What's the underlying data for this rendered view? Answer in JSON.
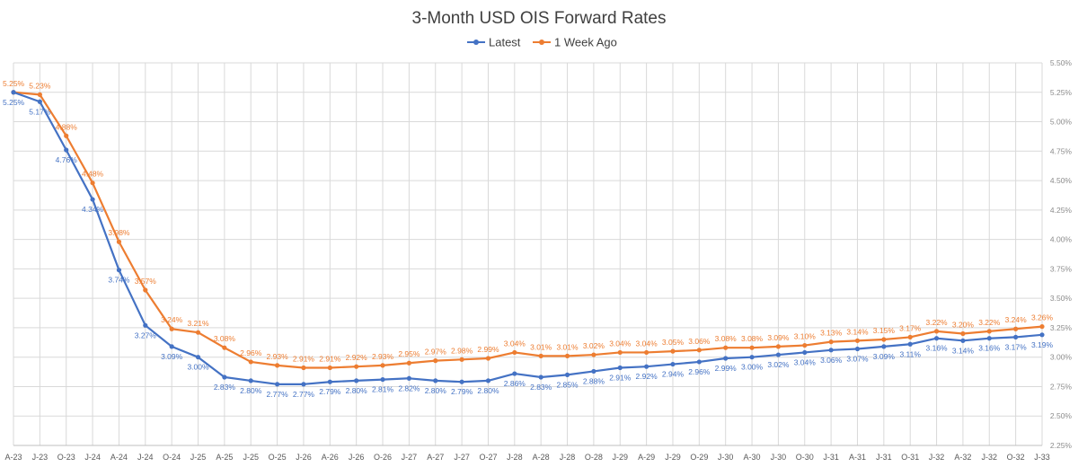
{
  "chart_data": {
    "type": "line",
    "title": "3-Month USD OIS Forward Rates",
    "categories": [
      "A-23",
      "J-23",
      "O-23",
      "J-24",
      "A-24",
      "J-24",
      "O-24",
      "J-25",
      "A-25",
      "J-25",
      "O-25",
      "J-26",
      "A-26",
      "J-26",
      "O-26",
      "J-27",
      "A-27",
      "J-27",
      "O-27",
      "J-28",
      "A-28",
      "J-28",
      "O-28",
      "J-29",
      "A-29",
      "J-29",
      "O-29",
      "J-30",
      "A-30",
      "J-30",
      "O-30",
      "J-31",
      "A-31",
      "J-31",
      "O-31",
      "J-32",
      "A-32",
      "J-32",
      "O-32",
      "J-33"
    ],
    "series": [
      {
        "name": "Latest",
        "color": "#4472c4",
        "values": [
          5.25,
          5.17,
          4.76,
          4.34,
          3.74,
          3.27,
          3.09,
          3.0,
          2.83,
          2.8,
          2.77,
          2.77,
          2.79,
          2.8,
          2.81,
          2.82,
          2.8,
          2.79,
          2.8,
          2.86,
          2.83,
          2.85,
          2.88,
          2.91,
          2.92,
          2.94,
          2.96,
          2.99,
          3.0,
          3.02,
          3.04,
          3.06,
          3.07,
          3.09,
          3.11,
          3.16,
          3.14,
          3.16,
          3.17,
          3.19
        ],
        "labels": [
          "5.25%",
          "5.17%",
          "4.76%",
          "4.34%",
          "3.74%",
          "3.27%",
          "3.09%",
          "3.00%",
          "2.83%",
          "2.80%",
          "2.77%",
          "2.77%",
          "2.79%",
          "2.80%",
          "2.81%",
          "2.82%",
          "2.80%",
          "2.79%",
          "2.80%",
          "2.86%",
          "2.83%",
          "2.85%",
          "2.88%",
          "2.91%",
          "2.92%",
          "2.94%",
          "2.96%",
          "2.99%",
          "3.00%",
          "3.02%",
          "3.04%",
          "3.06%",
          "3.07%",
          "3.09%",
          "3.11%",
          "3.16%",
          "3.14%",
          "3.16%",
          "3.17%",
          "3.19%"
        ]
      },
      {
        "name": "1 Week Ago",
        "color": "#ed7d31",
        "values": [
          5.25,
          5.23,
          4.88,
          4.48,
          3.98,
          3.57,
          3.24,
          3.21,
          3.08,
          2.96,
          2.93,
          2.91,
          2.91,
          2.92,
          2.93,
          2.95,
          2.97,
          2.98,
          2.99,
          3.04,
          3.01,
          3.01,
          3.02,
          3.04,
          3.04,
          3.05,
          3.06,
          3.08,
          3.08,
          3.09,
          3.1,
          3.13,
          3.14,
          3.15,
          3.17,
          3.22,
          3.2,
          3.22,
          3.24,
          3.26
        ],
        "labels": [
          "5.25%",
          "5.23%",
          "4.88%",
          "4.48%",
          "3.98%",
          "3.57%",
          "3.24%",
          "3.21%",
          "3.08%",
          "2.96%",
          "2.93%",
          "2.91%",
          "2.91%",
          "2.92%",
          "2.93%",
          "2.95%",
          "2.97%",
          "2.98%",
          "2.99%",
          "3.04%",
          "3.01%",
          "3.01%",
          "3.02%",
          "3.04%",
          "3.04%",
          "3.05%",
          "3.06%",
          "3.08%",
          "3.08%",
          "3.09%",
          "3.10%",
          "3.13%",
          "3.14%",
          "3.15%",
          "3.17%",
          "3.22%",
          "3.20%",
          "3.22%",
          "3.24%",
          "3.26%"
        ]
      }
    ],
    "ylim": [
      2.25,
      5.5
    ],
    "yticks": [
      "2.25%",
      "2.50%",
      "2.75%",
      "3.00%",
      "3.25%",
      "3.50%",
      "3.75%",
      "4.00%",
      "4.25%",
      "4.50%",
      "4.75%",
      "5.00%",
      "5.25%",
      "5.50%"
    ],
    "y_axis_side": "right",
    "grid": true,
    "legend_position": "top-center"
  }
}
